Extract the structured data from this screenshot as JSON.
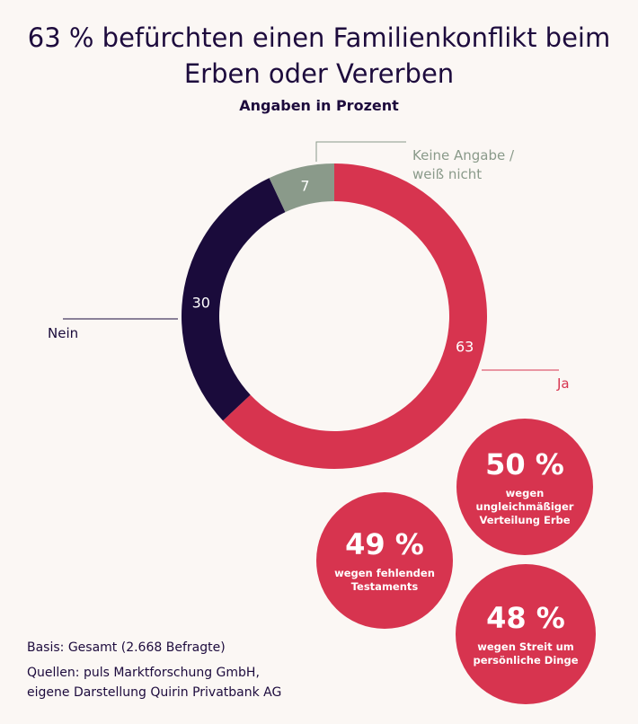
{
  "title": "63 % befürchten einen Familienkonflikt beim Erben oder Vererben",
  "subtitle": "Angaben in Prozent",
  "chart_data": {
    "type": "pie",
    "title": "63 % befürchten einen Familienkonflikt beim Erben oder Vererben",
    "subtitle": "Angaben in Prozent",
    "slices": [
      {
        "label": "Ja",
        "value": 63,
        "color": "#d7344f"
      },
      {
        "label": "Nein",
        "value": 30,
        "color": "#1a0b3b"
      },
      {
        "label": "Keine Angabe / weiß nicht",
        "value": 7,
        "color": "#8a9a8a"
      }
    ]
  },
  "reasons": [
    {
      "pct": "50 %",
      "text": "wegen ungleichmäßiger\nVerteilung Erbe"
    },
    {
      "pct": "49 %",
      "text": "wegen fehlenden\nTestaments"
    },
    {
      "pct": "48 %",
      "text": "wegen Streit um\npersönliche Dinge"
    }
  ],
  "footer": {
    "basis": "Basis: Gesamt (2.668 Befragte)",
    "sources_line1": "Quellen: puls Marktforschung GmbH,",
    "sources_line2": "eigene Darstellung Quirin Privatbank AG"
  }
}
